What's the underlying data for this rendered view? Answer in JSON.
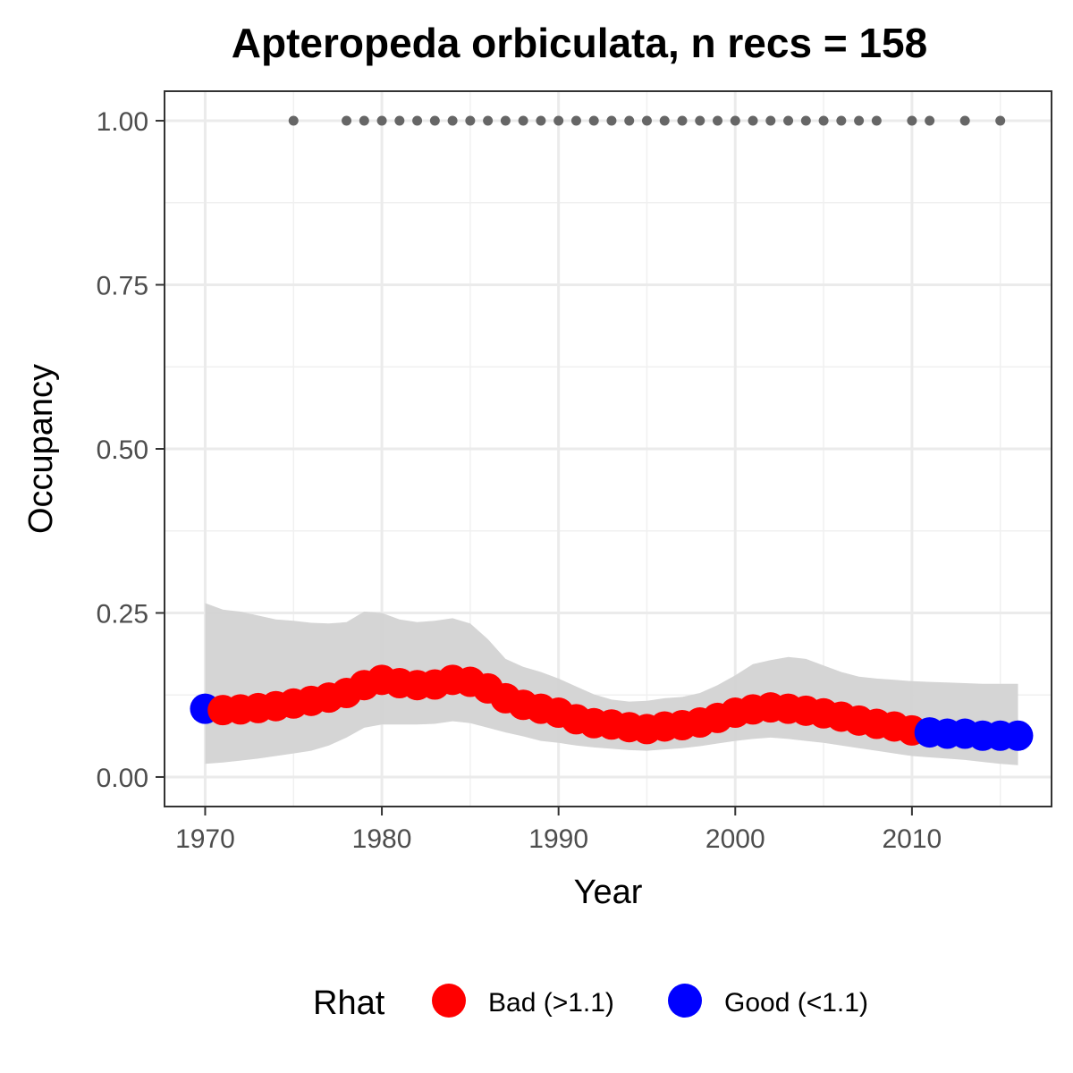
{
  "chart_data": {
    "type": "line",
    "title": "Apteropeda orbiculata, n recs = 158",
    "xlabel": "Year",
    "ylabel": "Occupancy",
    "xlim": [
      1967.7,
      2017.9
    ],
    "ylim": [
      -0.045,
      1.045
    ],
    "x_ticks": [
      1970,
      1980,
      1990,
      2000,
      2010
    ],
    "x_tick_labels": [
      "1970",
      "1980",
      "1990",
      "2000",
      "2010"
    ],
    "y_ticks": [
      0,
      0.25,
      0.5,
      0.75,
      1.0
    ],
    "y_tick_labels": [
      "0.00",
      "0.25",
      "0.50",
      "0.75",
      "1.00"
    ],
    "grid": true,
    "legend": {
      "title": "Rhat",
      "position": "bottom",
      "entries": [
        {
          "label": "Bad (>1.1)",
          "color": "#ff0000"
        },
        {
          "label": "Good (<1.1)",
          "color": "#0000ff"
        }
      ]
    },
    "colors": {
      "bad": "#ff0000",
      "good": "#0000ff",
      "ribbon": "#d3d3d3",
      "records": "#666666"
    },
    "records": {
      "y": 1.0,
      "x": [
        1975,
        1978,
        1979,
        1980,
        1981,
        1982,
        1983,
        1984,
        1985,
        1986,
        1987,
        1988,
        1989,
        1990,
        1991,
        1992,
        1993,
        1994,
        1995,
        1996,
        1997,
        1998,
        1999,
        2000,
        2001,
        2002,
        2003,
        2004,
        2005,
        2006,
        2007,
        2008,
        2010,
        2011,
        2013,
        2015
      ]
    },
    "years": [
      1970,
      1971,
      1972,
      1973,
      1974,
      1975,
      1976,
      1977,
      1978,
      1979,
      1980,
      1981,
      1982,
      1983,
      1984,
      1985,
      1986,
      1987,
      1988,
      1989,
      1990,
      1991,
      1992,
      1993,
      1994,
      1995,
      1996,
      1997,
      1998,
      1999,
      2000,
      2001,
      2002,
      2003,
      2004,
      2005,
      2006,
      2007,
      2008,
      2009,
      2010,
      2011,
      2012,
      2013,
      2014,
      2015,
      2016
    ],
    "mean": [
      0.104,
      0.102,
      0.103,
      0.105,
      0.108,
      0.112,
      0.116,
      0.121,
      0.128,
      0.14,
      0.148,
      0.143,
      0.14,
      0.141,
      0.148,
      0.145,
      0.135,
      0.12,
      0.11,
      0.104,
      0.098,
      0.088,
      0.082,
      0.08,
      0.076,
      0.073,
      0.077,
      0.079,
      0.083,
      0.09,
      0.098,
      0.103,
      0.106,
      0.104,
      0.101,
      0.097,
      0.092,
      0.086,
      0.081,
      0.077,
      0.071,
      0.068,
      0.066,
      0.066,
      0.063,
      0.063,
      0.063
    ],
    "lower": [
      0.02,
      0.022,
      0.025,
      0.028,
      0.032,
      0.036,
      0.04,
      0.048,
      0.06,
      0.075,
      0.08,
      0.08,
      0.08,
      0.081,
      0.085,
      0.082,
      0.075,
      0.068,
      0.062,
      0.055,
      0.052,
      0.048,
      0.045,
      0.043,
      0.041,
      0.04,
      0.042,
      0.044,
      0.047,
      0.051,
      0.055,
      0.058,
      0.06,
      0.058,
      0.055,
      0.052,
      0.048,
      0.044,
      0.04,
      0.036,
      0.032,
      0.03,
      0.028,
      0.026,
      0.023,
      0.02,
      0.018
    ],
    "upper": [
      0.265,
      0.255,
      0.252,
      0.246,
      0.24,
      0.238,
      0.235,
      0.234,
      0.236,
      0.252,
      0.25,
      0.24,
      0.236,
      0.238,
      0.242,
      0.234,
      0.21,
      0.18,
      0.168,
      0.16,
      0.15,
      0.138,
      0.126,
      0.118,
      0.115,
      0.116,
      0.12,
      0.122,
      0.128,
      0.14,
      0.155,
      0.172,
      0.178,
      0.183,
      0.18,
      0.17,
      0.16,
      0.153,
      0.15,
      0.148,
      0.146,
      0.145,
      0.144,
      0.143,
      0.142,
      0.142,
      0.142
    ],
    "rhat_status": [
      "good",
      "bad",
      "bad",
      "bad",
      "bad",
      "bad",
      "bad",
      "bad",
      "bad",
      "bad",
      "bad",
      "bad",
      "bad",
      "bad",
      "bad",
      "bad",
      "bad",
      "bad",
      "bad",
      "bad",
      "bad",
      "bad",
      "bad",
      "bad",
      "bad",
      "bad",
      "bad",
      "bad",
      "bad",
      "bad",
      "bad",
      "bad",
      "bad",
      "bad",
      "bad",
      "bad",
      "bad",
      "bad",
      "bad",
      "bad",
      "bad",
      "good",
      "good",
      "good",
      "good",
      "good",
      "good"
    ]
  }
}
